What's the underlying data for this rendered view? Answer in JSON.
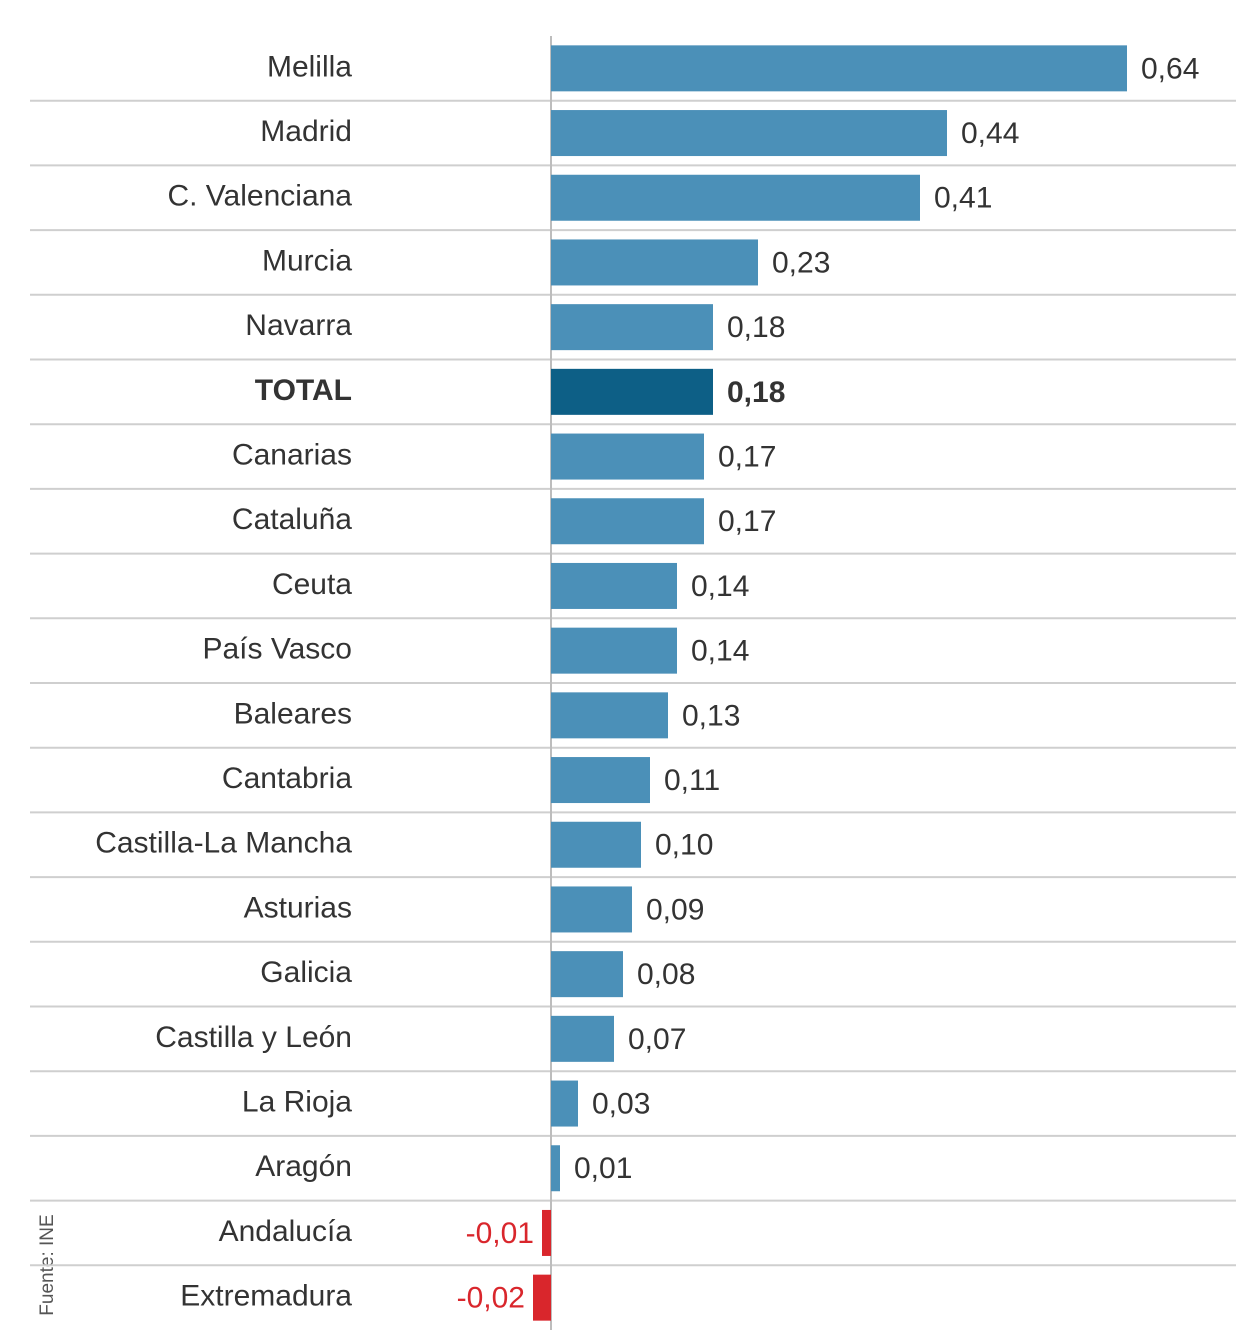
{
  "chart_data": {
    "type": "barh",
    "categories": [
      "Melilla",
      "Madrid",
      "C. Valenciana",
      "Murcia",
      "Navarra",
      "TOTAL",
      "Canarias",
      "Cataluña",
      "Ceuta",
      "País Vasco",
      "Baleares",
      "Cantabria",
      "Castilla-La Mancha",
      "Asturias",
      "Galicia",
      "Castilla y León",
      "La Rioja",
      "Aragón",
      "Andalucía",
      "Extremadura"
    ],
    "values": [
      0.64,
      0.44,
      0.41,
      0.23,
      0.18,
      0.18,
      0.17,
      0.17,
      0.14,
      0.14,
      0.13,
      0.11,
      0.1,
      0.09,
      0.08,
      0.07,
      0.03,
      0.01,
      -0.01,
      -0.02
    ],
    "value_labels": [
      "0,64",
      "0,44",
      "0,41",
      "0,23",
      "0,18",
      "0,18",
      "0,17",
      "0,17",
      "0,14",
      "0,14",
      "0,13",
      "0,11",
      "0,10",
      "0,09",
      "0,08",
      "0,07",
      "0,03",
      "0,01",
      "-0,01",
      "-0,02"
    ],
    "colors": [
      "#4b90b8",
      "#4b90b8",
      "#4b90b8",
      "#4b90b8",
      "#4b90b8",
      "#0d5f86",
      "#4b90b8",
      "#4b90b8",
      "#4b90b8",
      "#4b90b8",
      "#4b90b8",
      "#4b90b8",
      "#4b90b8",
      "#4b90b8",
      "#4b90b8",
      "#4b90b8",
      "#4b90b8",
      "#4b90b8",
      "#d9262c",
      "#d9262c"
    ],
    "xlim": [
      -0.02,
      0.64
    ],
    "source": "Fuente: INE"
  }
}
